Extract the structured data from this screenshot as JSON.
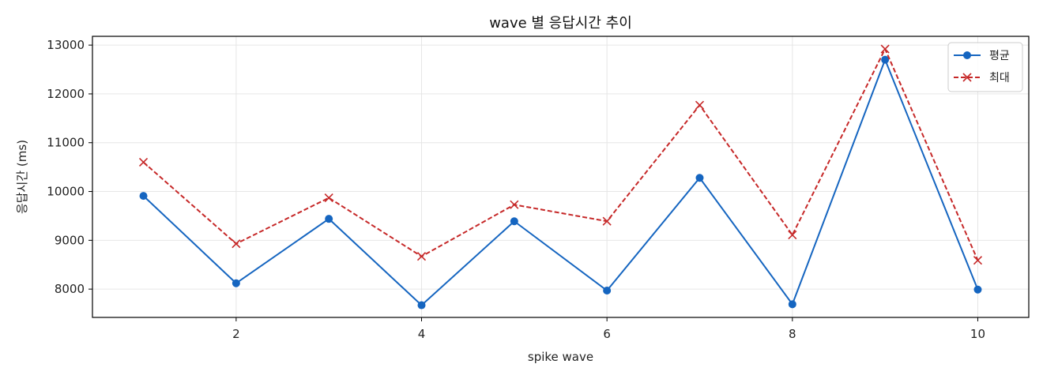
{
  "chart_data": {
    "type": "line",
    "title": "wave 별 응답시간 추이",
    "xlabel": "spike wave",
    "ylabel": "응답시간 (ms)",
    "x": [
      1,
      2,
      3,
      4,
      5,
      6,
      7,
      8,
      9,
      10
    ],
    "xlim": [
      0.45,
      10.55
    ],
    "ylim": [
      7420,
      13180
    ],
    "xticks": [
      2,
      4,
      6,
      8,
      10
    ],
    "yticks": [
      8000,
      9000,
      10000,
      11000,
      12000,
      13000
    ],
    "grid": true,
    "legend_position": "top-right",
    "series": [
      {
        "name": "평균",
        "values": [
          9910,
          8120,
          9440,
          7670,
          9390,
          7970,
          10280,
          7690,
          12700,
          7990
        ],
        "color": "#1565c0",
        "line_style": "solid",
        "marker": "circle"
      },
      {
        "name": "최대",
        "values": [
          10600,
          8930,
          9870,
          8670,
          9730,
          9390,
          11770,
          9110,
          12920,
          8590
        ],
        "color": "#c62828",
        "line_style": "dashed",
        "marker": "x"
      }
    ]
  }
}
